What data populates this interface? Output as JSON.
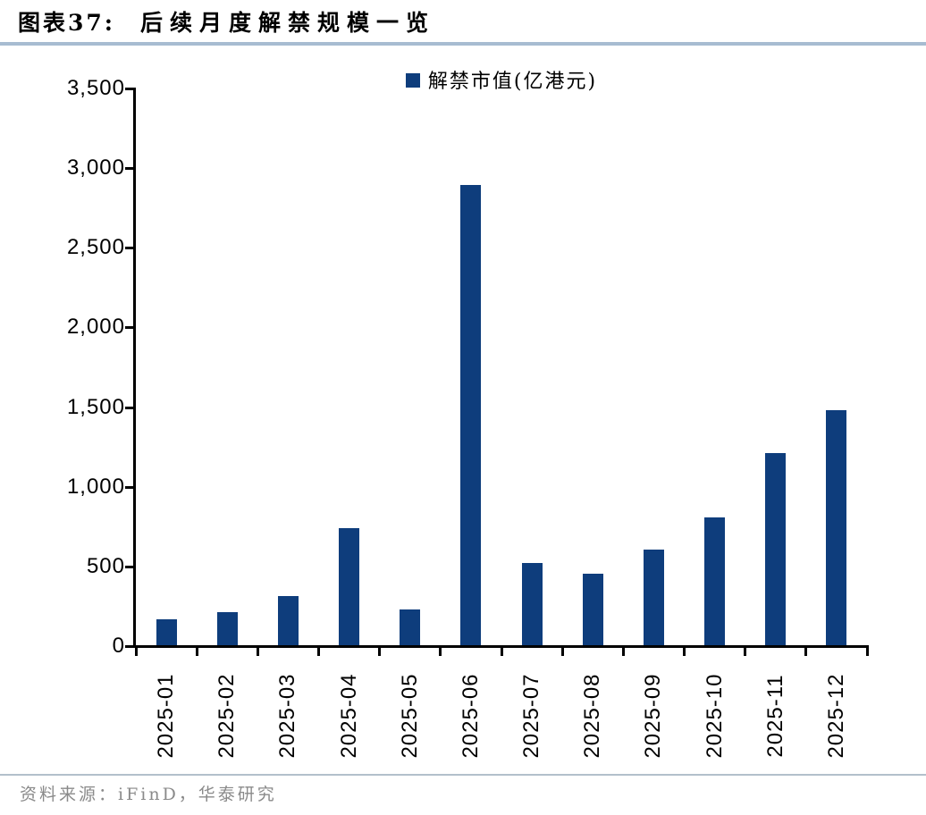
{
  "header": {
    "figure_label": "图表37:",
    "title": "后续月度解禁规模一览"
  },
  "legend": {
    "marker_icon": "filled-square-icon",
    "label": "解禁市值(亿港元)"
  },
  "chart_data": {
    "type": "bar",
    "title": "后续月度解禁规模一览",
    "legend": [
      "解禁市值(亿港元)"
    ],
    "legend_position": "top-center",
    "categories": [
      "2025-01",
      "2025-02",
      "2025-03",
      "2025-04",
      "2025-05",
      "2025-06",
      "2025-07",
      "2025-08",
      "2025-09",
      "2025-10",
      "2025-11",
      "2025-12"
    ],
    "series": [
      {
        "name": "解禁市值(亿港元)",
        "values": [
          160,
          205,
          310,
          735,
          225,
          2890,
          515,
          450,
          600,
          800,
          1205,
          1475
        ]
      }
    ],
    "xlabel": "",
    "ylabel": "",
    "ylim": [
      0,
      3500
    ],
    "ytick_step": 500,
    "ytick_labels": [
      "0",
      "500",
      "1,000",
      "1,500",
      "2,000",
      "2,500",
      "3,000",
      "3,500"
    ],
    "grid": false,
    "bar_color": "#0e3d7c"
  },
  "footer": {
    "source": "资料来源：iFinD，华泰研究"
  },
  "colors": {
    "bar": "#0e3d7c",
    "title_divider": "#a7bcd1",
    "footer_divider": "#b3c0cb",
    "footer_text": "#8a8a8a",
    "axis": "#000000"
  }
}
